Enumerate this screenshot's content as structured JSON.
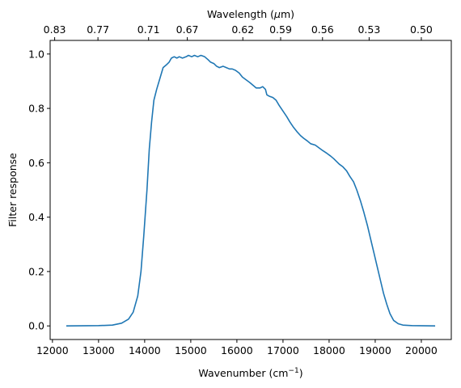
{
  "chart_data": {
    "type": "line",
    "title": "",
    "xlabel": "Wavenumber (cm",
    "xlabel_sup": "−1",
    "xlabel_suffix": ")",
    "ylabel": "Filter response",
    "top_xlabel": "Wavelength (",
    "top_xlabel_mu": "μ",
    "top_xlabel_suffix": "m)",
    "xlim": [
      11950,
      20650
    ],
    "ylim": [
      -0.05,
      1.05
    ],
    "xticks": [
      12000,
      13000,
      14000,
      15000,
      16000,
      17000,
      18000,
      19000,
      20000
    ],
    "yticks": [
      0.0,
      0.2,
      0.4,
      0.6,
      0.8,
      1.0
    ],
    "ytick_labels": [
      "0.0",
      "0.2",
      "0.4",
      "0.6",
      "0.8",
      "1.0"
    ],
    "top_ticks": [
      {
        "wavenumber": 12048,
        "label": "0.83"
      },
      {
        "wavenumber": 12987,
        "label": "0.77"
      },
      {
        "wavenumber": 14085,
        "label": "0.71"
      },
      {
        "wavenumber": 14925,
        "label": "0.67"
      },
      {
        "wavenumber": 16129,
        "label": "0.62"
      },
      {
        "wavenumber": 16949,
        "label": "0.59"
      },
      {
        "wavenumber": 17857,
        "label": "0.56"
      },
      {
        "wavenumber": 18868,
        "label": "0.53"
      },
      {
        "wavenumber": 20000,
        "label": "0.50"
      }
    ],
    "grid": false,
    "line_color": "#1f77b4",
    "series": [
      {
        "values": [
          [
            12300,
            0.0
          ],
          [
            13000,
            0.001
          ],
          [
            13300,
            0.003
          ],
          [
            13500,
            0.01
          ],
          [
            13650,
            0.025
          ],
          [
            13750,
            0.05
          ],
          [
            13850,
            0.11
          ],
          [
            13920,
            0.2
          ],
          [
            13980,
            0.33
          ],
          [
            14050,
            0.5
          ],
          [
            14100,
            0.65
          ],
          [
            14150,
            0.75
          ],
          [
            14200,
            0.83
          ],
          [
            14260,
            0.87
          ],
          [
            14330,
            0.91
          ],
          [
            14400,
            0.95
          ],
          [
            14470,
            0.96
          ],
          [
            14530,
            0.97
          ],
          [
            14580,
            0.985
          ],
          [
            14640,
            0.99
          ],
          [
            14700,
            0.985
          ],
          [
            14750,
            0.99
          ],
          [
            14820,
            0.985
          ],
          [
            14900,
            0.99
          ],
          [
            14950,
            0.995
          ],
          [
            15020,
            0.99
          ],
          [
            15080,
            0.995
          ],
          [
            15150,
            0.99
          ],
          [
            15220,
            0.995
          ],
          [
            15300,
            0.99
          ],
          [
            15370,
            0.98
          ],
          [
            15430,
            0.97
          ],
          [
            15500,
            0.965
          ],
          [
            15560,
            0.955
          ],
          [
            15620,
            0.95
          ],
          [
            15700,
            0.955
          ],
          [
            15770,
            0.95
          ],
          [
            15840,
            0.945
          ],
          [
            15900,
            0.945
          ],
          [
            15970,
            0.94
          ],
          [
            16050,
            0.93
          ],
          [
            16120,
            0.915
          ],
          [
            16200,
            0.905
          ],
          [
            16280,
            0.895
          ],
          [
            16350,
            0.885
          ],
          [
            16420,
            0.875
          ],
          [
            16500,
            0.875
          ],
          [
            16560,
            0.88
          ],
          [
            16620,
            0.87
          ],
          [
            16650,
            0.85
          ],
          [
            16700,
            0.845
          ],
          [
            16780,
            0.84
          ],
          [
            16850,
            0.83
          ],
          [
            16920,
            0.81
          ],
          [
            17000,
            0.79
          ],
          [
            17080,
            0.77
          ],
          [
            17150,
            0.75
          ],
          [
            17230,
            0.73
          ],
          [
            17300,
            0.715
          ],
          [
            17380,
            0.7
          ],
          [
            17450,
            0.69
          ],
          [
            17530,
            0.68
          ],
          [
            17600,
            0.67
          ],
          [
            17700,
            0.665
          ],
          [
            17780,
            0.655
          ],
          [
            17860,
            0.645
          ],
          [
            17950,
            0.635
          ],
          [
            18030,
            0.625
          ],
          [
            18100,
            0.615
          ],
          [
            18160,
            0.605
          ],
          [
            18220,
            0.595
          ],
          [
            18300,
            0.585
          ],
          [
            18380,
            0.57
          ],
          [
            18450,
            0.55
          ],
          [
            18530,
            0.53
          ],
          [
            18600,
            0.5
          ],
          [
            18680,
            0.46
          ],
          [
            18750,
            0.42
          ],
          [
            18830,
            0.37
          ],
          [
            18900,
            0.32
          ],
          [
            18970,
            0.27
          ],
          [
            19040,
            0.22
          ],
          [
            19110,
            0.17
          ],
          [
            19180,
            0.12
          ],
          [
            19250,
            0.08
          ],
          [
            19320,
            0.045
          ],
          [
            19400,
            0.02
          ],
          [
            19500,
            0.008
          ],
          [
            19600,
            0.003
          ],
          [
            19800,
            0.001
          ],
          [
            20300,
            0.0
          ]
        ]
      }
    ]
  }
}
